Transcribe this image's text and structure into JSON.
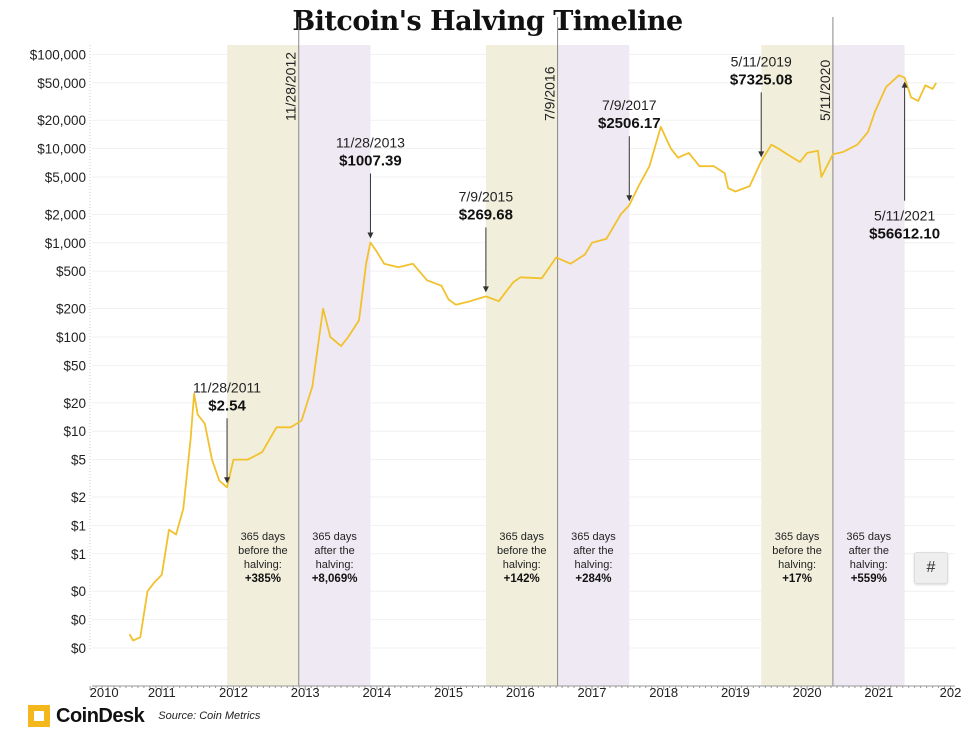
{
  "chart_data": {
    "type": "line",
    "title": "Bitcoin's Halving Timeline",
    "xlabel": "",
    "ylabel": "",
    "yscale": "log",
    "ylim": [
      0.05,
      100000
    ],
    "xlim": [
      2010,
      2022
    ],
    "y_ticks": [
      {
        "v": 100000,
        "l": "$100,000"
      },
      {
        "v": 50000,
        "l": "$50,000"
      },
      {
        "v": 20000,
        "l": "$20,000"
      },
      {
        "v": 10000,
        "l": "$10,000"
      },
      {
        "v": 5000,
        "l": "$5,000"
      },
      {
        "v": 2000,
        "l": "$2,000"
      },
      {
        "v": 1000,
        "l": "$1,000"
      },
      {
        "v": 500,
        "l": "$500"
      },
      {
        "v": 200,
        "l": "$200"
      },
      {
        "v": 100,
        "l": "$100"
      },
      {
        "v": 50,
        "l": "$50"
      },
      {
        "v": 20,
        "l": "$20"
      },
      {
        "v": 10,
        "l": "$10"
      },
      {
        "v": 5,
        "l": "$5"
      },
      {
        "v": 2,
        "l": "$2"
      },
      {
        "v": 1,
        "l": "$1"
      },
      {
        "v": 0.5,
        "l": "$1"
      },
      {
        "v": 0.2,
        "l": "$0"
      },
      {
        "v": 0.1,
        "l": "$0"
      },
      {
        "v": 0.05,
        "l": "$0"
      }
    ],
    "x_ticks": [
      "2010",
      "2011",
      "2012",
      "2013",
      "2014",
      "2015",
      "2016",
      "2017",
      "2018",
      "2019",
      "2020",
      "2021",
      "202"
    ],
    "grid": true,
    "series": [
      {
        "name": "BTC price",
        "color": "#f2c12e",
        "points": [
          [
            2010.55,
            0.07
          ],
          [
            2010.6,
            0.06
          ],
          [
            2010.7,
            0.065
          ],
          [
            2010.8,
            0.2
          ],
          [
            2010.9,
            0.25
          ],
          [
            2011.0,
            0.3
          ],
          [
            2011.1,
            0.9
          ],
          [
            2011.2,
            0.8
          ],
          [
            2011.3,
            1.5
          ],
          [
            2011.4,
            8
          ],
          [
            2011.45,
            25
          ],
          [
            2011.5,
            15
          ],
          [
            2011.6,
            12
          ],
          [
            2011.7,
            5
          ],
          [
            2011.8,
            3
          ],
          [
            2011.91,
            2.54
          ],
          [
            2012.0,
            5
          ],
          [
            2012.2,
            5
          ],
          [
            2012.4,
            6
          ],
          [
            2012.6,
            11
          ],
          [
            2012.8,
            11
          ],
          [
            2012.95,
            13
          ],
          [
            2013.1,
            30
          ],
          [
            2013.25,
            200
          ],
          [
            2013.35,
            100
          ],
          [
            2013.5,
            80
          ],
          [
            2013.6,
            100
          ],
          [
            2013.75,
            150
          ],
          [
            2013.85,
            600
          ],
          [
            2013.91,
            1007.39
          ],
          [
            2014.0,
            800
          ],
          [
            2014.1,
            600
          ],
          [
            2014.3,
            550
          ],
          [
            2014.5,
            600
          ],
          [
            2014.7,
            400
          ],
          [
            2014.9,
            350
          ],
          [
            2015.0,
            250
          ],
          [
            2015.1,
            220
          ],
          [
            2015.3,
            240
          ],
          [
            2015.52,
            269.68
          ],
          [
            2015.7,
            240
          ],
          [
            2015.9,
            380
          ],
          [
            2016.0,
            430
          ],
          [
            2016.3,
            420
          ],
          [
            2016.5,
            700
          ],
          [
            2016.7,
            600
          ],
          [
            2016.9,
            750
          ],
          [
            2017.0,
            1000
          ],
          [
            2017.2,
            1100
          ],
          [
            2017.4,
            2000
          ],
          [
            2017.52,
            2506.17
          ],
          [
            2017.65,
            4000
          ],
          [
            2017.8,
            6500
          ],
          [
            2017.96,
            17000
          ],
          [
            2018.1,
            10000
          ],
          [
            2018.2,
            8000
          ],
          [
            2018.35,
            9000
          ],
          [
            2018.5,
            6500
          ],
          [
            2018.7,
            6500
          ],
          [
            2018.85,
            5500
          ],
          [
            2018.9,
            3800
          ],
          [
            2019.0,
            3500
          ],
          [
            2019.2,
            4000
          ],
          [
            2019.36,
            7325.08
          ],
          [
            2019.5,
            11000
          ],
          [
            2019.6,
            10000
          ],
          [
            2019.8,
            8000
          ],
          [
            2019.9,
            7200
          ],
          [
            2020.0,
            9000
          ],
          [
            2020.15,
            9500
          ],
          [
            2020.2,
            5000
          ],
          [
            2020.36,
            8700
          ],
          [
            2020.5,
            9200
          ],
          [
            2020.7,
            11000
          ],
          [
            2020.85,
            15000
          ],
          [
            2020.95,
            25000
          ],
          [
            2021.1,
            45000
          ],
          [
            2021.28,
            60000
          ],
          [
            2021.36,
            56612.1
          ],
          [
            2021.45,
            35000
          ],
          [
            2021.55,
            32000
          ],
          [
            2021.65,
            47000
          ],
          [
            2021.75,
            43000
          ],
          [
            2021.8,
            50000
          ]
        ]
      }
    ],
    "halvings": [
      {
        "x": 2012.91,
        "label": "11/28/2012"
      },
      {
        "x": 2016.52,
        "label": "7/9/2016"
      },
      {
        "x": 2020.36,
        "label": "5/11/2020"
      }
    ],
    "bands": [
      {
        "from": 2011.91,
        "to": 2012.91,
        "kind": "before",
        "lines": [
          "365 days",
          "before the",
          "halving:"
        ],
        "pct": "+385%"
      },
      {
        "from": 2012.91,
        "to": 2013.91,
        "kind": "after",
        "lines": [
          "365 days",
          "after the",
          "halving:"
        ],
        "pct": "+8,069%"
      },
      {
        "from": 2015.52,
        "to": 2016.52,
        "kind": "before",
        "lines": [
          "365 days",
          "before the",
          "halving:"
        ],
        "pct": "+142%"
      },
      {
        "from": 2016.52,
        "to": 2017.52,
        "kind": "after",
        "lines": [
          "365 days",
          "after the",
          "halving:"
        ],
        "pct": "+284%"
      },
      {
        "from": 2019.36,
        "to": 2020.36,
        "kind": "before",
        "lines": [
          "365 days",
          "before the",
          "halving:"
        ],
        "pct": "+17%"
      },
      {
        "from": 2020.36,
        "to": 2021.36,
        "kind": "after",
        "lines": [
          "365 days",
          "after the",
          "halving:"
        ],
        "pct": "+559%"
      }
    ],
    "annotations": [
      {
        "x": 2011.91,
        "price": 2.54,
        "date": "11/28/2011",
        "value": "$2.54",
        "dir": "up"
      },
      {
        "x": 2013.91,
        "price": 1007.39,
        "date": "11/28/2013",
        "value": "$1007.39",
        "dir": "up"
      },
      {
        "x": 2015.52,
        "price": 269.68,
        "date": "7/9/2015",
        "value": "$269.68",
        "dir": "up"
      },
      {
        "x": 2017.52,
        "price": 2506.17,
        "date": "7/9/2017",
        "value": "$2506.17",
        "dir": "up"
      },
      {
        "x": 2019.36,
        "price": 7325.08,
        "date": "5/11/2019",
        "value": "$7325.08",
        "dir": "up"
      },
      {
        "x": 2021.36,
        "price": 56612.1,
        "date": "5/11/2021",
        "value": "$56612.10",
        "dir": "down"
      }
    ],
    "colors": {
      "before": "#f1efdc",
      "after": "#efe9f3",
      "line": "#f2c12e",
      "halving_line": "#888888"
    }
  },
  "footer": {
    "brand": "CoinDesk",
    "source": "Source: Coin Metrics"
  },
  "hash_button": "#"
}
